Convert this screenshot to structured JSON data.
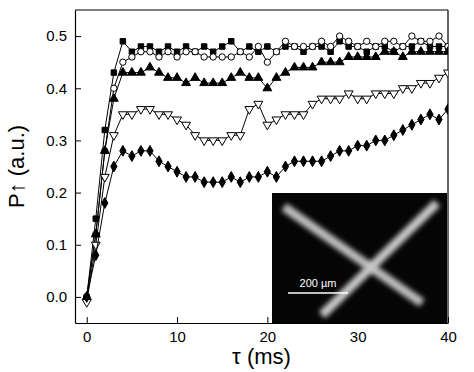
{
  "chart_data": {
    "type": "line",
    "x_label": "τ (ms)",
    "y_label": "P↑ (a.u.)",
    "annotations": [
      "200 µm"
    ],
    "xlim": [
      -1.3,
      40
    ],
    "ylim": [
      -0.05,
      0.55
    ],
    "xticks": [
      0,
      10,
      20,
      30,
      40
    ],
    "yticks": [
      {
        "value": 0,
        "label": "0.0"
      },
      0.1,
      0.2,
      0.3,
      0.4,
      0.5
    ],
    "x": [
      0,
      1,
      2,
      3,
      4,
      5,
      6,
      7,
      8,
      9,
      10,
      11,
      12,
      13,
      14,
      15,
      16,
      17,
      18,
      19,
      20,
      21,
      22,
      23,
      24,
      25,
      26,
      27,
      28,
      29,
      30,
      31,
      32,
      33,
      34,
      35,
      36,
      37,
      38,
      39,
      40
    ],
    "series": [
      {
        "color": "#000000",
        "marker": "square",
        "line_style": "solid",
        "values": [
          0.0,
          0.15,
          0.32,
          0.43,
          0.49,
          0.47,
          0.48,
          0.48,
          0.47,
          0.48,
          0.47,
          0.48,
          0.47,
          0.48,
          0.47,
          0.48,
          0.49,
          0.47,
          0.48,
          0.47,
          0.48,
          0.47,
          0.48,
          0.48,
          0.47,
          0.48,
          0.48,
          0.47,
          0.49,
          0.48,
          0.48,
          0.47,
          0.48,
          0.48,
          0.47,
          0.48,
          0.48,
          0.49,
          0.48,
          0.48,
          0.48
        ]
      },
      {
        "color": "#000000",
        "marker": "circle-open",
        "line_style": "solid",
        "values": [
          0.0,
          0.12,
          0.28,
          0.4,
          0.45,
          0.46,
          0.47,
          0.47,
          0.46,
          0.47,
          0.46,
          0.47,
          0.47,
          0.46,
          0.46,
          0.46,
          0.46,
          0.47,
          0.46,
          0.48,
          0.45,
          0.47,
          0.49,
          0.48,
          0.48,
          0.48,
          0.49,
          0.48,
          0.5,
          0.49,
          0.48,
          0.49,
          0.48,
          0.49,
          0.49,
          0.48,
          0.5,
          0.49,
          0.49,
          0.5,
          0.48
        ]
      },
      {
        "color": "#000000",
        "marker": "triangle-up",
        "line_style": "solid",
        "values": [
          0.0,
          0.12,
          0.28,
          0.38,
          0.43,
          0.43,
          0.43,
          0.44,
          0.43,
          0.42,
          0.42,
          0.41,
          0.42,
          0.41,
          0.41,
          0.41,
          0.42,
          0.43,
          0.42,
          0.42,
          0.4,
          0.42,
          0.43,
          0.44,
          0.44,
          0.44,
          0.45,
          0.45,
          0.45,
          0.46,
          0.46,
          0.46,
          0.46,
          0.47,
          0.47,
          0.46,
          0.47,
          0.47,
          0.47,
          0.47,
          0.47
        ]
      },
      {
        "color": "#000000",
        "marker": "triangle-down-open",
        "line_style": "solid",
        "values": [
          -0.01,
          0.1,
          0.23,
          0.31,
          0.35,
          0.35,
          0.36,
          0.36,
          0.35,
          0.35,
          0.34,
          0.33,
          0.31,
          0.3,
          0.3,
          0.3,
          0.31,
          0.31,
          0.36,
          0.37,
          0.33,
          0.34,
          0.35,
          0.35,
          0.35,
          0.37,
          0.38,
          0.38,
          0.38,
          0.39,
          0.38,
          0.38,
          0.39,
          0.39,
          0.39,
          0.4,
          0.4,
          0.41,
          0.41,
          0.42,
          0.43
        ]
      },
      {
        "color": "#000000",
        "marker": "diamond",
        "line_style": "solid",
        "values": [
          0.0,
          0.08,
          0.18,
          0.25,
          0.28,
          0.27,
          0.28,
          0.28,
          0.26,
          0.25,
          0.24,
          0.23,
          0.23,
          0.22,
          0.22,
          0.22,
          0.23,
          0.22,
          0.23,
          0.23,
          0.24,
          0.23,
          0.25,
          0.26,
          0.26,
          0.26,
          0.26,
          0.27,
          0.28,
          0.28,
          0.29,
          0.29,
          0.3,
          0.3,
          0.31,
          0.32,
          0.33,
          0.34,
          0.35,
          0.34,
          0.36
        ]
      }
    ]
  }
}
